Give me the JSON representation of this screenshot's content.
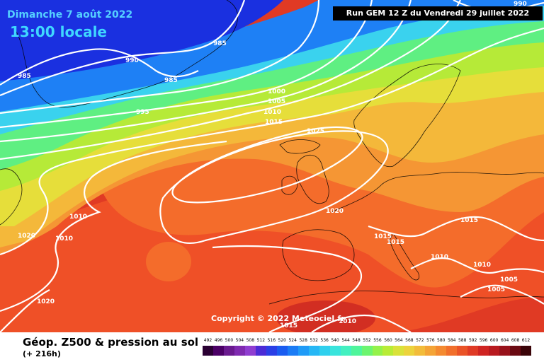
{
  "header": {
    "date_local": "Dimanche 7 août 2022",
    "time_local": "13:00 locale",
    "run_info": "Run GEM 12 Z du Vendredi 29 juillet 2022"
  },
  "copyright": "Copyright © 2022 Meteociel.fr",
  "legend": {
    "title": "Géop. Z500 & pression au sol",
    "subtitle": "(+ 216h)",
    "scale_labels": [
      "492",
      "496",
      "500",
      "504",
      "508",
      "512",
      "516",
      "520",
      "524",
      "528",
      "532",
      "536",
      "540",
      "544",
      "548",
      "552",
      "556",
      "560",
      "564",
      "568",
      "572",
      "576",
      "580",
      "584",
      "588",
      "592",
      "596",
      "600",
      "604",
      "608",
      "612"
    ],
    "scale_colors": [
      "#2a0033",
      "#4b0066",
      "#6a1a8f",
      "#7f2ab0",
      "#8f3dd0",
      "#4b2bd6",
      "#2a3fe6",
      "#1a5cf0",
      "#1b7cf5",
      "#1f9bf7",
      "#26b7f5",
      "#2fd0ee",
      "#39e4dc",
      "#43f0c0",
      "#4ff59b",
      "#6cf56f",
      "#94f24a",
      "#b8ec36",
      "#d9e23a",
      "#ecd33c",
      "#f2bc3a",
      "#f4a436",
      "#f48a30",
      "#f16f2b",
      "#ea5327",
      "#df3a25",
      "#cf2422",
      "#b81a1f",
      "#98121b",
      "#6a0a12",
      "#3a0408"
    ]
  },
  "map_labels": {
    "isobars": [
      "985",
      "990",
      "985",
      "985",
      "995",
      "1000",
      "1005",
      "1010",
      "1015",
      "1025",
      "1020",
      "1010",
      "1020",
      "1010",
      "1015",
      "1015",
      "1015",
      "1010",
      "1010",
      "1005",
      "1005",
      "1020",
      "1015",
      "1010",
      "990"
    ]
  },
  "colors": {
    "deep_blue": "#1a2fe0",
    "mid_blue": "#1f7ef5",
    "cyan": "#3fd2f0",
    "green": "#58ee88",
    "yellow": "#e6e03a",
    "orange": "#f39a32",
    "red_orange": "#f06a2a",
    "red": "#ea4a26",
    "deep_red": "#d83322"
  }
}
